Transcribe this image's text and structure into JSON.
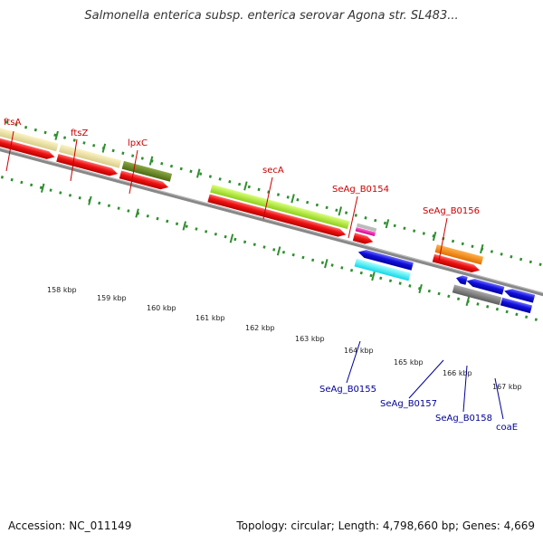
{
  "title": "Salmonella enterica subsp. enterica serovar Agona str. SL483...",
  "footer": {
    "accession": "Accession: NC_011149",
    "topology": "Topology: circular; Length: 4,798,660 bp; Genes: 4,669"
  },
  "ruler": {
    "labels": [
      "158 kbp",
      "159 kbp",
      "160 kbp",
      "161 kbp",
      "162 kbp",
      "163 kbp",
      "164 kbp",
      "165 kbp",
      "166 kbp",
      "167 kbp"
    ]
  },
  "colors": {
    "forward_label": "#cc0000",
    "reverse_label": "#000099",
    "cds_forward": "#ee1111",
    "cds_reverse": "#1111cc",
    "tick": "#2f8f2f",
    "backbone": "#888888"
  },
  "genes_forward": [
    {
      "name": "ftsA"
    },
    {
      "name": "ftsZ"
    },
    {
      "name": "lpxC"
    },
    {
      "name": "secA"
    },
    {
      "name": "SeAg_B0154"
    },
    {
      "name": "SeAg_B0156"
    }
  ],
  "genes_reverse": [
    {
      "name": "SeAg_B0155"
    },
    {
      "name": "SeAg_B0157"
    },
    {
      "name": "SeAg_B0158"
    },
    {
      "name": "coaE"
    }
  ]
}
